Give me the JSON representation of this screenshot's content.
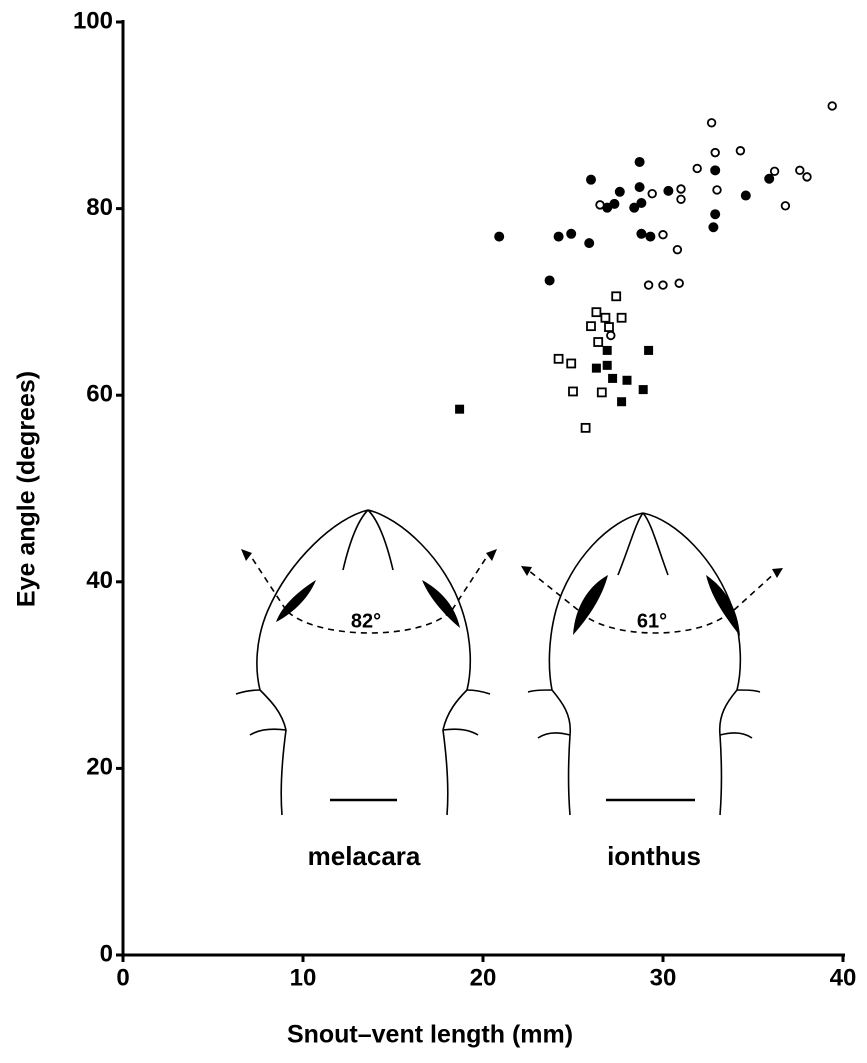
{
  "chart_data": {
    "type": "scatter",
    "x_label": "Snout–vent length (mm)",
    "y_label": "Eye angle (degrees)",
    "xlim": [
      0,
      40
    ],
    "xticks": [
      0,
      10,
      20,
      30,
      40
    ],
    "ylim": [
      0,
      100
    ],
    "yticks": [
      0,
      20,
      40,
      60,
      80,
      100
    ],
    "series": [
      {
        "color": "#000000",
        "marker": "circle",
        "filled": true,
        "x": [
          20.9,
          23.7,
          24.2,
          24.9,
          25.9,
          26.0,
          26.9,
          27.3,
          27.6,
          28.4,
          28.7,
          28.7,
          28.8,
          28.8,
          29.3,
          30.3,
          32.9,
          32.9,
          32.8,
          34.6,
          35.9
        ],
        "values": [
          77.0,
          72.3,
          77.0,
          77.3,
          76.3,
          83.1,
          80.1,
          80.5,
          81.8,
          80.1,
          82.3,
          85.0,
          80.6,
          77.3,
          77.0,
          81.9,
          84.1,
          79.4,
          78.0,
          81.4,
          83.2
        ]
      },
      {
        "color": "#000000",
        "marker": "circle",
        "filled": false,
        "x": [
          26.5,
          29.4,
          30.0,
          29.2,
          30.0,
          30.9,
          30.8,
          31.0,
          31.0,
          31.9,
          32.7,
          32.9,
          33.0,
          34.3,
          36.2,
          36.8,
          37.6,
          38.0,
          39.4,
          27.1
        ],
        "values": [
          80.4,
          81.6,
          77.2,
          71.8,
          71.8,
          72.0,
          75.6,
          82.1,
          81.0,
          84.3,
          89.2,
          86.0,
          82.0,
          86.2,
          84.0,
          80.3,
          84.1,
          83.4,
          91.0,
          66.4
        ]
      },
      {
        "color": "#000000",
        "marker": "square",
        "filled": true,
        "x": [
          18.7,
          26.3,
          26.9,
          26.9,
          27.2,
          27.7,
          28.0,
          28.9,
          29.2
        ],
        "values": [
          58.5,
          62.9,
          63.2,
          64.8,
          61.8,
          59.3,
          61.6,
          60.6,
          64.8
        ]
      },
      {
        "color": "#000000",
        "marker": "square",
        "filled": false,
        "x": [
          25.7,
          24.2,
          24.9,
          25.0,
          26.0,
          26.3,
          26.4,
          26.8,
          26.6,
          27.0,
          27.4,
          27.7
        ],
        "values": [
          56.5,
          63.9,
          63.4,
          60.4,
          67.4,
          68.9,
          65.7,
          68.3,
          60.3,
          67.3,
          70.6,
          68.3
        ]
      }
    ],
    "annotations": [
      "82°",
      "61°",
      "melacara",
      "ionthus"
    ]
  }
}
